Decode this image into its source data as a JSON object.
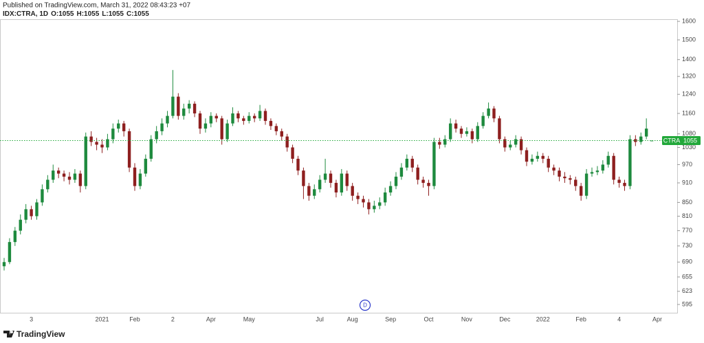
{
  "header": {
    "published": "Published on TradingView.com, March 31, 2022 08:43:23 +07",
    "symbol": "IDX:CTRA, 1D",
    "ohlc": [
      {
        "label": "O:",
        "value": 1055
      },
      {
        "label": "H:",
        "value": 1055
      },
      {
        "label": "L:",
        "value": 1055
      },
      {
        "label": "C:",
        "value": 1055
      }
    ]
  },
  "marker": {
    "label": "D"
  },
  "footer": {
    "brand": "TradingView"
  },
  "chart_data": {
    "type": "candlestick",
    "log_scale": true,
    "up_color": "#1e8a3e",
    "down_color": "#8e1f1f",
    "ylim": [
      578,
      1612
    ],
    "yticks": [
      595,
      623,
      655,
      690,
      730,
      770,
      810,
      850,
      910,
      970,
      1030,
      1080,
      1160,
      1240,
      1320,
      1400,
      1500,
      1600
    ],
    "price_line": {
      "name": "CTRA",
      "value": 1055,
      "color": "#22a83a"
    },
    "categories": [
      null,
      null,
      null,
      null,
      null,
      "3",
      null,
      null,
      null,
      null,
      null,
      null,
      null,
      null,
      null,
      null,
      null,
      null,
      "2021",
      null,
      null,
      null,
      null,
      null,
      "Feb",
      null,
      null,
      null,
      null,
      null,
      null,
      "2",
      null,
      null,
      null,
      null,
      null,
      null,
      "Apr",
      null,
      null,
      null,
      null,
      null,
      null,
      "May",
      null,
      null,
      null,
      null,
      null,
      null,
      null,
      null,
      null,
      null,
      null,
      null,
      "Jul",
      null,
      null,
      null,
      null,
      null,
      "Aug",
      null,
      null,
      null,
      null,
      null,
      null,
      "Sep",
      null,
      null,
      null,
      null,
      null,
      null,
      "Oct",
      null,
      null,
      null,
      null,
      null,
      null,
      "Nov",
      null,
      null,
      null,
      null,
      null,
      null,
      "Dec",
      null,
      null,
      null,
      null,
      null,
      null,
      "2022",
      null,
      null,
      null,
      null,
      null,
      null,
      "Feb",
      null,
      null,
      null,
      null,
      null,
      null,
      "4",
      null,
      null,
      null,
      null,
      null,
      null,
      "Apr"
    ],
    "open": [
      680,
      690,
      740,
      770,
      800,
      830,
      810,
      850,
      890,
      920,
      950,
      940,
      930,
      920,
      940,
      900,
      1070,
      1050,
      1040,
      1030,
      1060,
      1100,
      1120,
      1090,
      960,
      900,
      940,
      990,
      1060,
      1090,
      1120,
      1150,
      1230,
      1150,
      1180,
      1200,
      1160,
      1100,
      1120,
      1150,
      1140,
      1060,
      1120,
      1160,
      1140,
      1130,
      1150,
      1140,
      1170,
      1130,
      1110,
      1090,
      1070,
      1030,
      990,
      950,
      900,
      870,
      890,
      920,
      940,
      910,
      880,
      940,
      900,
      870,
      860,
      850,
      830,
      840,
      850,
      880,
      900,
      930,
      960,
      990,
      960,
      920,
      910,
      900,
      1050,
      1040,
      1060,
      1120,
      1100,
      1080,
      1090,
      1060,
      1110,
      1150,
      1180,
      1140,
      1060,
      1030,
      1040,
      1060,
      1020,
      980,
      990,
      1000,
      990,
      960,
      950,
      930,
      925,
      920,
      900,
      870,
      940,
      945,
      950,
      970,
      1000,
      920,
      910,
      900,
      1060,
      1050,
      1070,
      1055,
      null
    ],
    "high": [
      700,
      750,
      780,
      815,
      845,
      840,
      860,
      905,
      935,
      970,
      960,
      950,
      945,
      955,
      950,
      1085,
      1090,
      1065,
      1060,
      1080,
      1120,
      1135,
      1130,
      1100,
      975,
      955,
      1005,
      1075,
      1110,
      1140,
      1170,
      1350,
      1245,
      1200,
      1215,
      1210,
      1170,
      1140,
      1165,
      1160,
      1150,
      1135,
      1185,
      1170,
      1150,
      1165,
      1160,
      1195,
      1180,
      1140,
      1120,
      1100,
      1080,
      1040,
      1000,
      960,
      910,
      905,
      935,
      990,
      950,
      920,
      955,
      950,
      910,
      880,
      870,
      860,
      855,
      865,
      895,
      915,
      945,
      975,
      1005,
      1000,
      970,
      930,
      920,
      1065,
      1065,
      1075,
      1140,
      1135,
      1110,
      1105,
      1100,
      1125,
      1165,
      1205,
      1190,
      1150,
      1070,
      1055,
      1075,
      1070,
      1030,
      1005,
      1015,
      1010,
      1000,
      970,
      960,
      945,
      935,
      930,
      910,
      955,
      960,
      965,
      985,
      1015,
      1010,
      930,
      920,
      1075,
      1075,
      1085,
      1140,
      1055,
      null
    ],
    "low": [
      670,
      685,
      730,
      760,
      790,
      800,
      800,
      840,
      880,
      910,
      925,
      915,
      905,
      910,
      880,
      890,
      1035,
      1020,
      1010,
      1020,
      1045,
      1085,
      1070,
      945,
      885,
      890,
      930,
      980,
      1045,
      1075,
      1105,
      1140,
      1135,
      1135,
      1160,
      1145,
      1080,
      1085,
      1105,
      1125,
      1040,
      1050,
      1110,
      1125,
      1115,
      1120,
      1125,
      1130,
      1115,
      1095,
      1075,
      1055,
      1015,
      975,
      935,
      860,
      855,
      860,
      880,
      910,
      895,
      865,
      870,
      885,
      855,
      845,
      835,
      815,
      820,
      830,
      840,
      870,
      890,
      920,
      950,
      945,
      905,
      895,
      870,
      890,
      1025,
      1030,
      1050,
      1085,
      1065,
      1070,
      1045,
      1050,
      1100,
      1140,
      1125,
      1045,
      1015,
      1020,
      1030,
      1005,
      965,
      970,
      980,
      975,
      945,
      935,
      915,
      910,
      905,
      885,
      855,
      860,
      930,
      935,
      940,
      960,
      905,
      895,
      885,
      890,
      1035,
      1040,
      1060,
      1055,
      null
    ],
    "close": [
      690,
      740,
      770,
      800,
      830,
      810,
      850,
      890,
      920,
      950,
      940,
      930,
      920,
      940,
      900,
      1070,
      1050,
      1040,
      1030,
      1060,
      1100,
      1120,
      1090,
      960,
      900,
      940,
      990,
      1060,
      1090,
      1120,
      1150,
      1230,
      1150,
      1180,
      1200,
      1160,
      1100,
      1120,
      1150,
      1140,
      1060,
      1120,
      1160,
      1140,
      1130,
      1150,
      1140,
      1170,
      1130,
      1110,
      1090,
      1070,
      1030,
      990,
      950,
      900,
      870,
      890,
      920,
      940,
      910,
      880,
      940,
      900,
      870,
      860,
      850,
      830,
      840,
      850,
      880,
      900,
      930,
      960,
      990,
      960,
      920,
      910,
      900,
      1050,
      1040,
      1060,
      1120,
      1100,
      1080,
      1090,
      1060,
      1110,
      1150,
      1180,
      1140,
      1060,
      1030,
      1040,
      1060,
      1020,
      980,
      990,
      1000,
      990,
      960,
      950,
      930,
      925,
      920,
      900,
      870,
      940,
      945,
      950,
      970,
      1000,
      920,
      910,
      900,
      1060,
      1050,
      1070,
      1100,
      1055,
      null
    ]
  }
}
